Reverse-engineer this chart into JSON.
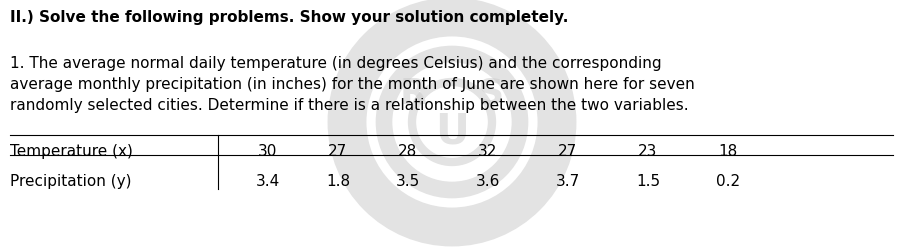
{
  "heading": "II.) Solve the following problems. Show your solution completely.",
  "problem_text_line1": "1. The average normal daily temperature (in degrees Celsius) and the corresponding",
  "problem_text_line2": "average monthly precipitation (in inches) for the month of June are shown here for seven",
  "problem_text_line3": "randomly selected cities. Determine if there is a relationship between the two variables.",
  "row1_label": "Temperature (x)",
  "row2_label": "Precipitation (y)",
  "temperature_values": [
    30,
    27,
    28,
    32,
    27,
    23,
    18
  ],
  "precipitation_values": [
    3.4,
    1.8,
    3.5,
    3.6,
    3.7,
    1.5,
    0.2
  ],
  "bg_color": "#ffffff",
  "text_color": "#000000",
  "heading_fontsize": 11.0,
  "body_fontsize": 11.0,
  "table_fontsize": 11.0,
  "watermark_color": "#cccccc",
  "watermark_alpha": 0.55
}
